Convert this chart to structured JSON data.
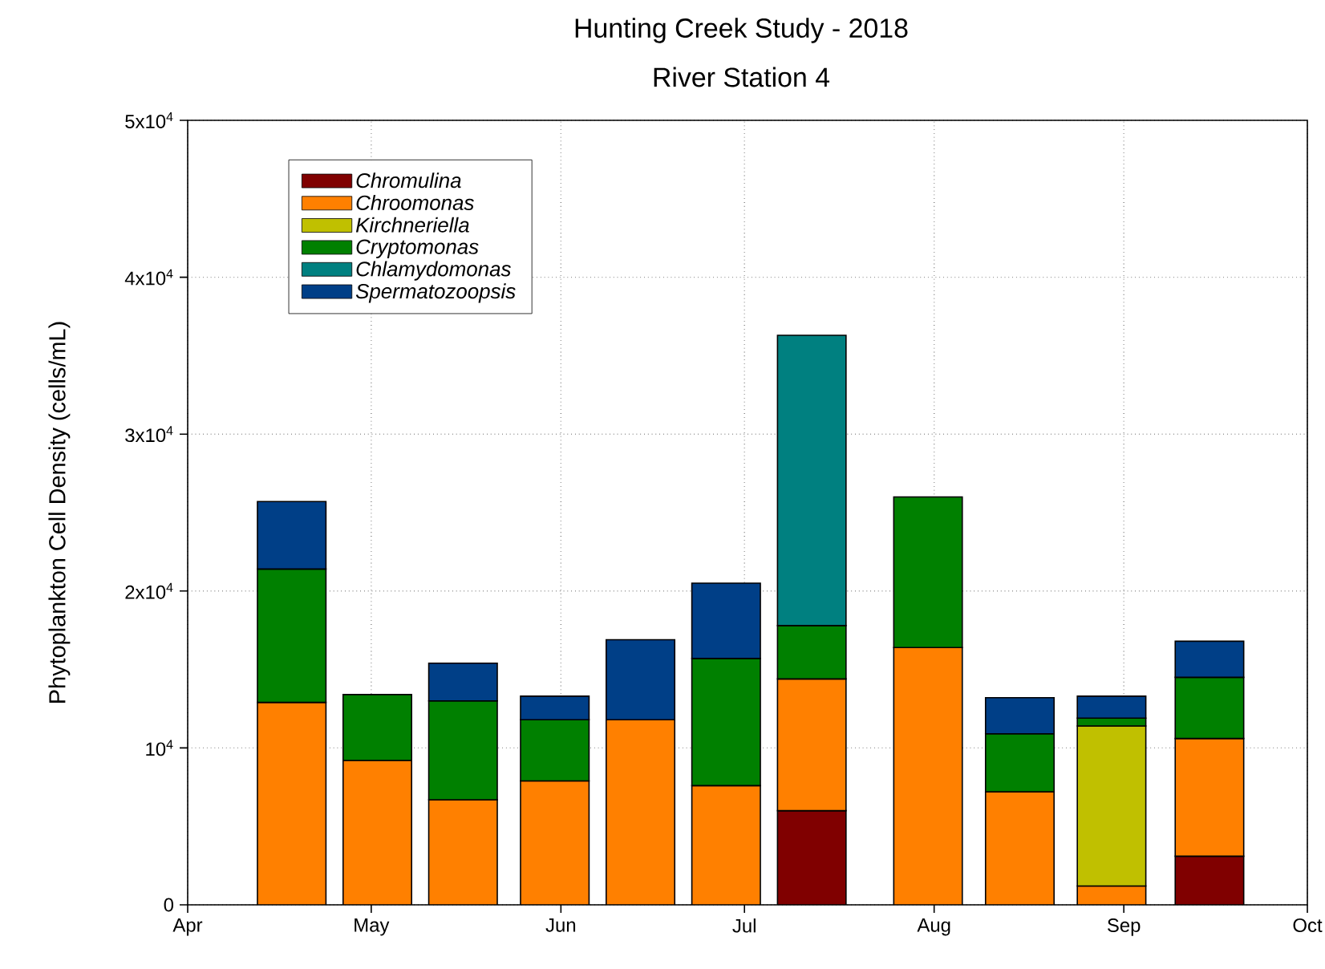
{
  "chart_data": {
    "type": "bar",
    "stacked": true,
    "title": "Hunting Creek Study - 2018",
    "subtitle": "River Station 4",
    "ylabel": "Phytoplankton Cell Density (cells/mL)",
    "x": [
      "2018-04-18",
      "2018-05-02",
      "2018-05-16",
      "2018-05-31",
      "2018-06-14",
      "2018-06-28",
      "2018-07-12",
      "2018-07-31",
      "2018-08-15",
      "2018-08-30",
      "2018-09-15"
    ],
    "series": [
      {
        "name": "*Chromulina*",
        "color": "#800000",
        "values": [
          null,
          null,
          null,
          null,
          null,
          null,
          6000,
          null,
          null,
          null,
          3100
        ]
      },
      {
        "name": "*Chroomonas*",
        "color": "#ff8000",
        "values": [
          12900,
          9200,
          6700,
          7900,
          11800,
          7600,
          8400,
          16400,
          7200,
          1200,
          7500
        ]
      },
      {
        "name": "*Kirchneriella*",
        "color": "#c0c000",
        "values": [
          null,
          null,
          null,
          null,
          null,
          null,
          null,
          null,
          null,
          10200,
          null
        ]
      },
      {
        "name": "*Cryptomonas*",
        "color": "#008000",
        "values": [
          8500,
          4200,
          6300,
          3900,
          null,
          8100,
          3400,
          9600,
          3700,
          500,
          3900
        ]
      },
      {
        "name": "*Chlamydomonas*",
        "color": "#008080",
        "values": [
          null,
          null,
          null,
          null,
          null,
          null,
          18500,
          null,
          null,
          null,
          null
        ]
      },
      {
        "name": "*Spermatozoopsis*",
        "color": "#003f87",
        "values": [
          4300,
          null,
          2400,
          1500,
          5100,
          4800,
          null,
          null,
          2300,
          1400,
          2300
        ]
      }
    ],
    "xlim": [
      "2018-04-01",
      "2018-10-01"
    ],
    "xticks": [
      {
        "value": "2018-04-01",
        "label": "Apr"
      },
      {
        "value": "2018-05-01",
        "label": "May"
      },
      {
        "value": "2018-06-01",
        "label": "Jun"
      },
      {
        "value": "2018-07-01",
        "label": "Jul"
      },
      {
        "value": "2018-08-01",
        "label": "Aug"
      },
      {
        "value": "2018-09-01",
        "label": "Sep"
      },
      {
        "value": "2018-10-01",
        "label": "Oct"
      }
    ],
    "ylim": [
      0,
      50000
    ],
    "yticks": [
      0,
      {
        "value": 10000,
        "label": "10$^{4}$"
      },
      {
        "value": 20000,
        "label": "2x10$^{4}$"
      },
      {
        "value": 30000,
        "label": "3x10$^{4}$"
      },
      {
        "value": 40000,
        "label": "4x10$^{4}$"
      },
      {
        "value": 50000,
        "label": "5x10$^{4}$"
      }
    ],
    "grid": true,
    "legend": "top left"
  }
}
